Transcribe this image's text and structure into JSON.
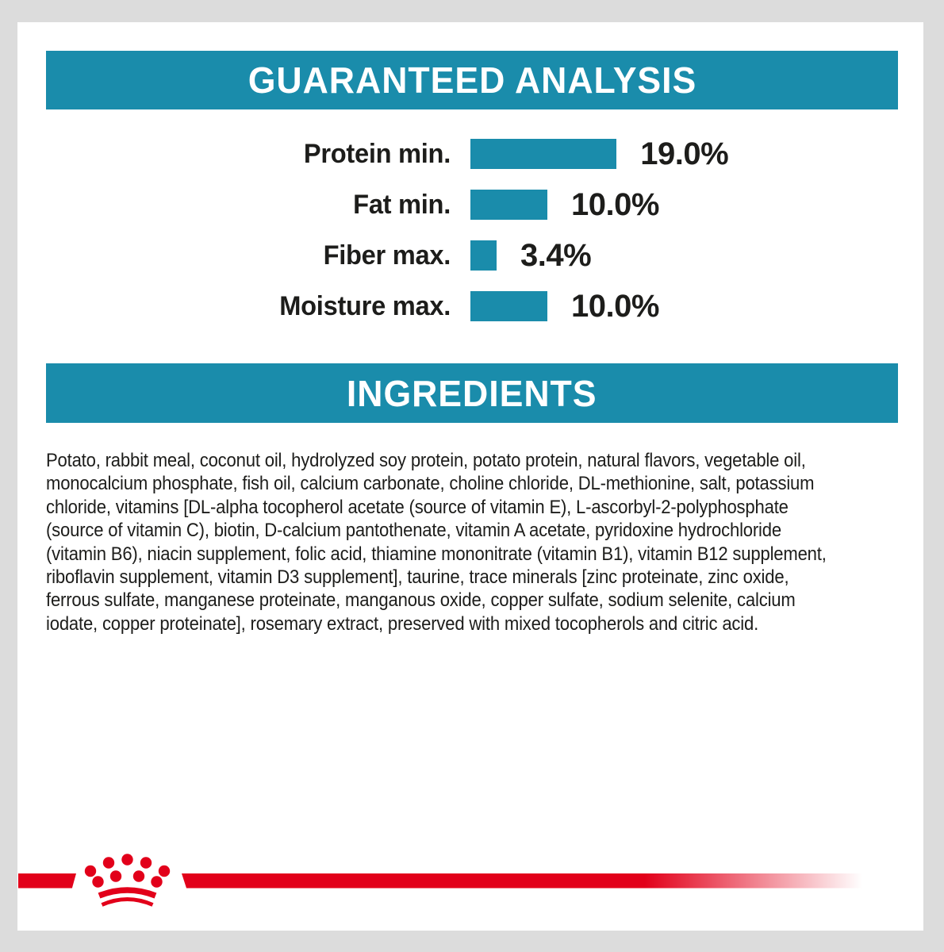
{
  "colors": {
    "teal": "#1a8cab",
    "red": "#e2001a",
    "text": "#1d1d1b",
    "frame_gray": "#dcdcdc",
    "panel_white": "#ffffff"
  },
  "guaranteed_analysis": {
    "title": "GUARANTEED ANALYSIS",
    "rows": [
      {
        "label": "Protein min.",
        "value": "19.0%",
        "percent": 19.0
      },
      {
        "label": "Fat min.",
        "value": "10.0%",
        "percent": 10.0
      },
      {
        "label": "Fiber max.",
        "value": "3.4%",
        "percent": 3.4
      },
      {
        "label": "Moisture max.",
        "value": "10.0%",
        "percent": 10.0
      }
    ]
  },
  "chart_data": {
    "type": "bar",
    "orientation": "horizontal",
    "title": "GUARANTEED ANALYSIS",
    "categories": [
      "Protein min.",
      "Fat min.",
      "Fiber max.",
      "Moisture max."
    ],
    "values": [
      19.0,
      10.0,
      3.4,
      10.0
    ],
    "value_labels": [
      "19.0%",
      "10.0%",
      "3.4%",
      "10.0%"
    ],
    "unit": "%",
    "xlim": [
      0,
      19
    ],
    "bar_color": "#1a8cab",
    "grid": false,
    "legend": false
  },
  "ingredients": {
    "title": "INGREDIENTS",
    "lines": [
      "Potato, rabbit meal, coconut oil, hydrolyzed soy protein, potato protein, natural flavors, vegetable oil,",
      "monocalcium phosphate, fish oil, calcium carbonate, choline chloride, DL-methionine, salt, potassium",
      "chloride, vitamins [DL-alpha tocopherol acetate (source of vitamin E), L-ascorbyl-2-polyphosphate",
      "(source of vitamin C), biotin, D-calcium pantothenate, vitamin A acetate, pyridoxine hydrochloride",
      "(vitamin B6), niacin supplement, folic acid, thiamine mononitrate (vitamin B1), vitamin B12 supplement,",
      "riboflavin supplement, vitamin D3 supplement], taurine, trace minerals [zinc proteinate, zinc oxide,",
      "ferrous sulfate, manganese proteinate, manganous oxide, copper sulfate, sodium selenite, calcium",
      "iodate, copper proteinate], rosemary extract, preserved with mixed tocopherols and citric acid."
    ],
    "full_text": "Potato, rabbit meal, coconut oil, hydrolyzed soy protein, potato protein, natural flavors, vegetable oil, monocalcium phosphate, fish oil, calcium carbonate, choline chloride, DL-methionine, salt, potassium chloride, vitamins [DL-alpha tocopherol acetate (source of vitamin E), L-ascorbyl-2-polyphosphate (source of vitamin C), biotin, D-calcium pantothenate, vitamin A acetate, pyridoxine hydrochloride (vitamin B6), niacin supplement, folic acid, thiamine mononitrate (vitamin B1), vitamin B12 supplement, riboflavin supplement, vitamin D3 supplement], taurine, trace minerals [zinc proteinate, zinc oxide, ferrous sulfate, manganese proteinate, manganous oxide, copper sulfate, sodium selenite, calcium iodate, copper proteinate], rosemary extract, preserved with mixed tocopherols and citric acid."
  },
  "footer": {
    "logo": "royal-canin-crown",
    "logo_color": "#e2001a"
  }
}
